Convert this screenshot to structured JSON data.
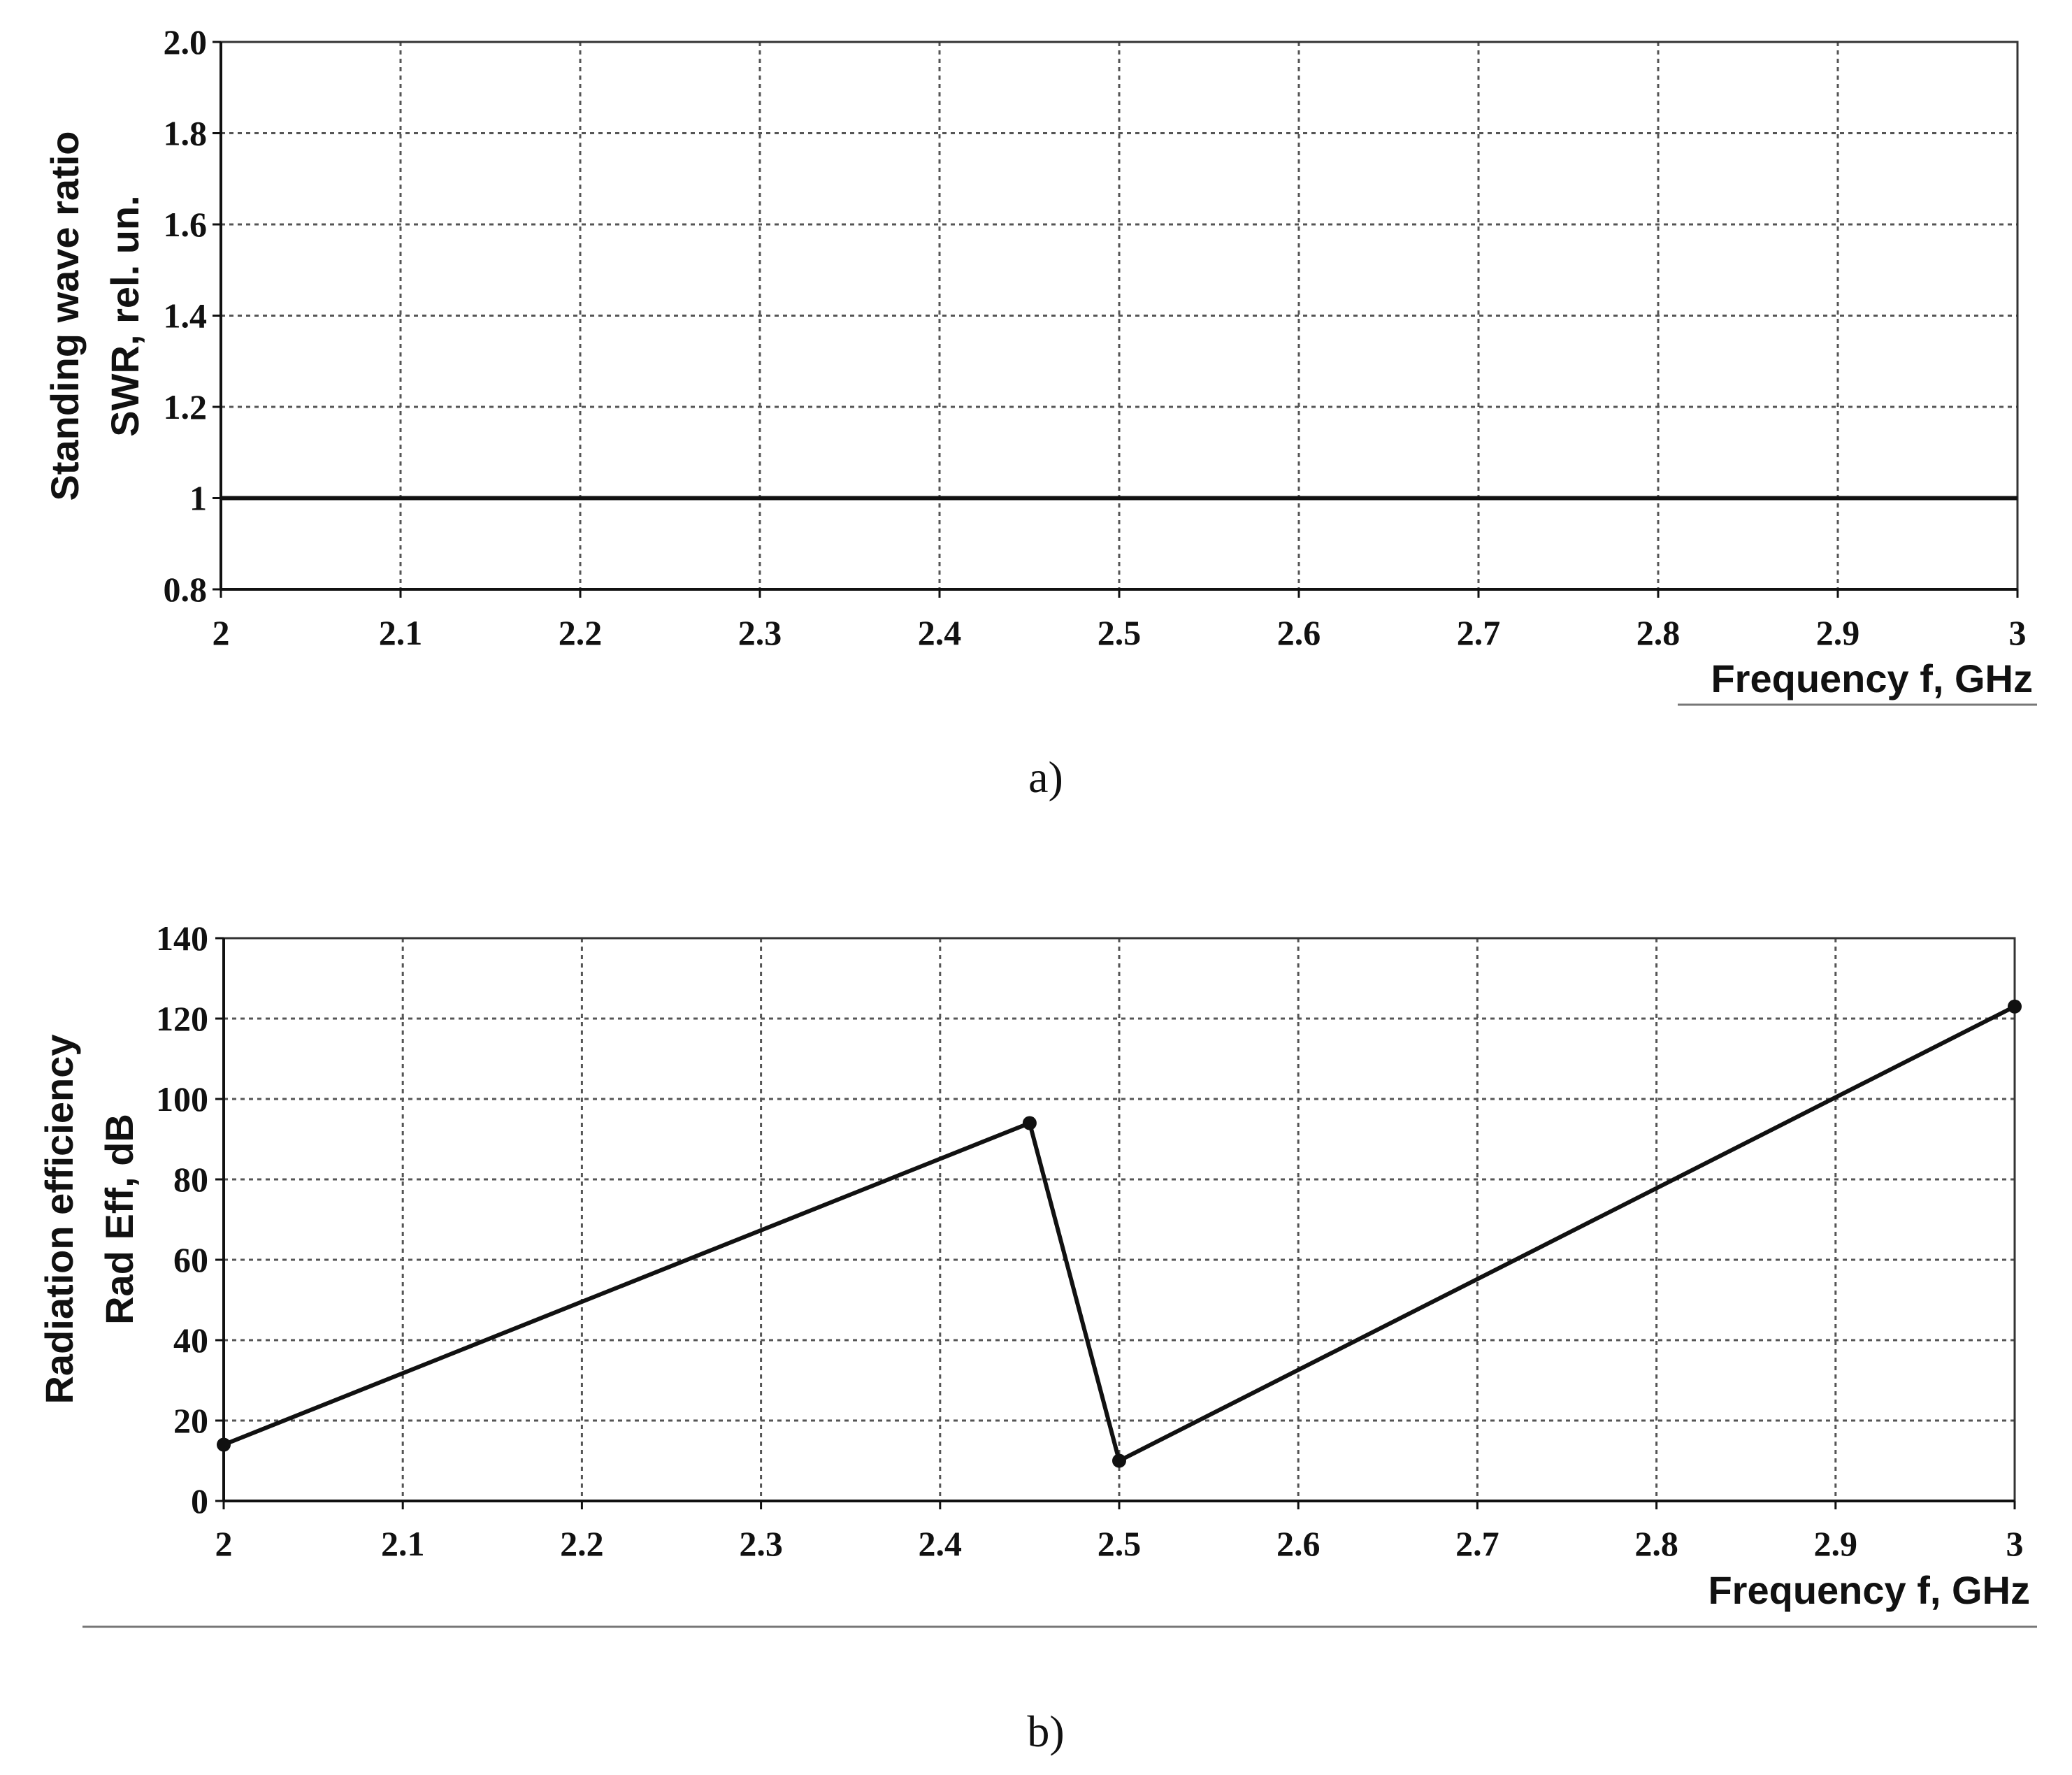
{
  "chart_data": [
    {
      "type": "line",
      "panel_label": "a)",
      "xlabel": "Frequency f, GHz",
      "ylabel_lines": [
        "Standing wave ratio",
        "SWR, rel. un."
      ],
      "x_ticks": [
        "2",
        "2.1",
        "2.2",
        "2.3",
        "2.4",
        "2.5",
        "2.6",
        "2.7",
        "2.8",
        "2.9",
        "3"
      ],
      "y_ticks": [
        "0.8",
        "1",
        "1.2",
        "1.4",
        "1.6",
        "1.8",
        "2.0"
      ],
      "xlim": [
        2,
        3
      ],
      "ylim": [
        0.8,
        2.0
      ],
      "grid": true,
      "series": [
        {
          "x": [
            2,
            3
          ],
          "y": [
            1,
            1
          ],
          "markers": false
        }
      ]
    },
    {
      "type": "line",
      "panel_label": "b)",
      "xlabel": "Frequency f, GHz",
      "ylabel_lines": [
        "Radiation efficiency",
        "Rad Eff, dB"
      ],
      "x_ticks": [
        "2",
        "2.1",
        "2.2",
        "2.3",
        "2.4",
        "2.5",
        "2.6",
        "2.7",
        "2.8",
        "2.9",
        "3"
      ],
      "y_ticks": [
        "0",
        "20",
        "40",
        "60",
        "80",
        "100",
        "120",
        "140"
      ],
      "xlim": [
        2,
        3
      ],
      "ylim": [
        0,
        140
      ],
      "grid": true,
      "series": [
        {
          "x": [
            2,
            2.45,
            2.5,
            3
          ],
          "y": [
            14,
            94,
            10,
            123
          ],
          "markers": true
        }
      ]
    }
  ]
}
